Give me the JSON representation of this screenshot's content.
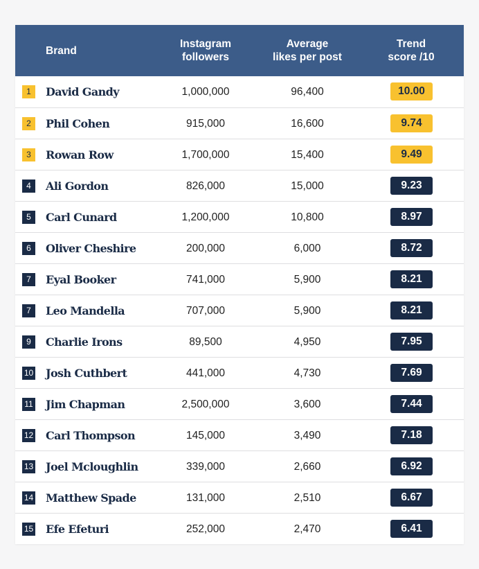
{
  "colors": {
    "header_bg": "#3c5c89",
    "gold": "#f8c12f",
    "navy": "#1a2b46"
  },
  "chart_data": {
    "type": "table",
    "columns": [
      "Brand",
      "Instagram followers",
      "Average likes per post",
      "Trend score /10"
    ],
    "rows": [
      {
        "rank": "1",
        "brand": "David Gandy",
        "followers": "1,000,000",
        "likes": "96,400",
        "score": "10.00",
        "highlight": true
      },
      {
        "rank": "2",
        "brand": "Phil Cohen",
        "followers": "915,000",
        "likes": "16,600",
        "score": "9.74",
        "highlight": true
      },
      {
        "rank": "3",
        "brand": "Rowan Row",
        "followers": "1,700,000",
        "likes": "15,400",
        "score": "9.49",
        "highlight": true
      },
      {
        "rank": "4",
        "brand": "Ali Gordon",
        "followers": "826,000",
        "likes": "15,000",
        "score": "9.23",
        "highlight": false
      },
      {
        "rank": "5",
        "brand": "Carl Cunard",
        "followers": "1,200,000",
        "likes": "10,800",
        "score": "8.97",
        "highlight": false
      },
      {
        "rank": "6",
        "brand": "Oliver Cheshire",
        "followers": "200,000",
        "likes": "6,000",
        "score": "8.72",
        "highlight": false
      },
      {
        "rank": "7",
        "brand": "Eyal Booker",
        "followers": "741,000",
        "likes": "5,900",
        "score": "8.21",
        "highlight": false
      },
      {
        "rank": "7",
        "brand": "Leo Mandella",
        "followers": "707,000",
        "likes": "5,900",
        "score": "8.21",
        "highlight": false
      },
      {
        "rank": "9",
        "brand": "Charlie Irons",
        "followers": "89,500",
        "likes": "4,950",
        "score": "7.95",
        "highlight": false
      },
      {
        "rank": "10",
        "brand": "Josh Cuthbert",
        "followers": "441,000",
        "likes": "4,730",
        "score": "7.69",
        "highlight": false
      },
      {
        "rank": "11",
        "brand": "Jim Chapman",
        "followers": "2,500,000",
        "likes": "3,600",
        "score": "7.44",
        "highlight": false
      },
      {
        "rank": "12",
        "brand": "Carl Thompson",
        "followers": "145,000",
        "likes": "3,490",
        "score": "7.18",
        "highlight": false
      },
      {
        "rank": "13",
        "brand": "Joel Mcloughlin",
        "followers": "339,000",
        "likes": "2,660",
        "score": "6.92",
        "highlight": false
      },
      {
        "rank": "14",
        "brand": "Matthew Spade",
        "followers": "131,000",
        "likes": "2,510",
        "score": "6.67",
        "highlight": false
      },
      {
        "rank": "15",
        "brand": "Efe Efeturi",
        "followers": "252,000",
        "likes": "2,470",
        "score": "6.41",
        "highlight": false
      }
    ]
  }
}
